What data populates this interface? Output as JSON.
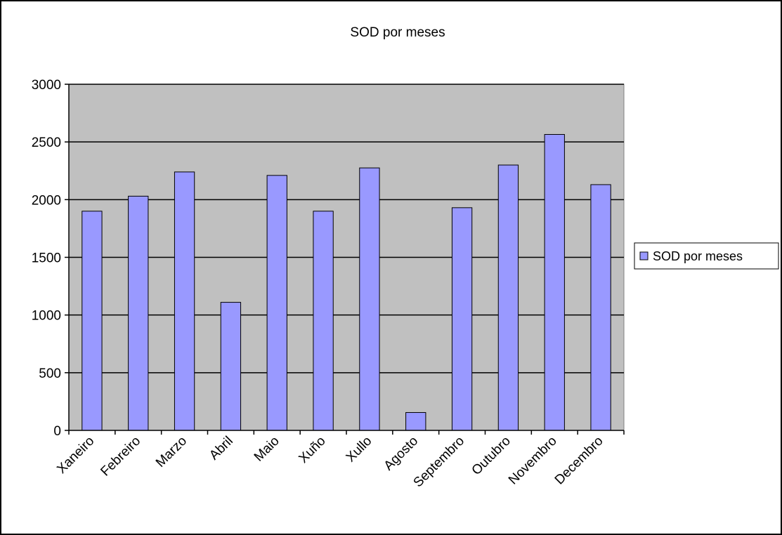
{
  "chart_data": {
    "type": "bar",
    "title": "SOD por meses",
    "xlabel": "",
    "ylabel": "",
    "categories": [
      "Xaneiro",
      "Febreiro",
      "Marzo",
      "Abril",
      "Maio",
      "Xuño",
      "Xullo",
      "Agosto",
      "Septembro",
      "Outubro",
      "Novembro",
      "Decembro"
    ],
    "series": [
      {
        "name": "SOD por meses",
        "values": [
          1900,
          2030,
          2240,
          1110,
          2210,
          1900,
          2275,
          155,
          1930,
          2300,
          2565,
          2130
        ]
      }
    ],
    "ylim": [
      0,
      3000
    ],
    "yticks": [
      0,
      500,
      1000,
      1500,
      2000,
      2500,
      3000
    ],
    "grid": true,
    "legend": "right",
    "colors": {
      "bar_fill": "#9999ff",
      "bar_stroke": "#000000",
      "plot_background": "#c0c0c0",
      "page_background": "#ffffff"
    }
  }
}
